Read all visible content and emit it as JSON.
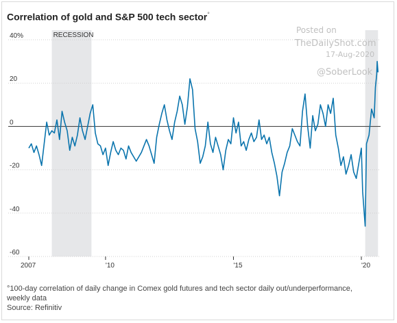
{
  "chart_data": {
    "type": "line",
    "title": "Correlation of gold and S&P 500 tech sector",
    "title_footnote_marker": "°",
    "xlabel": "",
    "ylabel": "",
    "ylim": [
      -60,
      40
    ],
    "xlim": [
      2007.0,
      2020.75
    ],
    "y_ticks": [
      {
        "value": 40,
        "label": "40%"
      },
      {
        "value": 20,
        "label": "20"
      },
      {
        "value": 0,
        "label": "0"
      },
      {
        "value": -20,
        "label": "-20"
      },
      {
        "value": -40,
        "label": "-40"
      },
      {
        "value": -60,
        "label": "-60"
      }
    ],
    "x_ticks": [
      {
        "value": 2007,
        "label": "2007"
      },
      {
        "value": 2010,
        "label": "'10"
      },
      {
        "value": 2015,
        "label": "'15"
      },
      {
        "value": 2020,
        "label": "'20"
      }
    ],
    "shaded_regions": [
      {
        "label": "RECESSION",
        "x0": 2007.9,
        "x1": 2009.45
      },
      {
        "label": "",
        "x0": 2020.15,
        "x1": 2020.65
      }
    ],
    "reference_line": 0,
    "colors": {
      "line": "#0a74ad",
      "recession": "#e6e7e9",
      "zero": "#333333"
    },
    "series": [
      {
        "name": "",
        "points": [
          [
            2007.0,
            -10
          ],
          [
            2007.1,
            -8
          ],
          [
            2007.2,
            -12
          ],
          [
            2007.3,
            -9
          ],
          [
            2007.4,
            -13
          ],
          [
            2007.5,
            -18
          ],
          [
            2007.6,
            -8
          ],
          [
            2007.7,
            2
          ],
          [
            2007.8,
            -4
          ],
          [
            2007.9,
            -2
          ],
          [
            2008.0,
            -3
          ],
          [
            2008.1,
            3
          ],
          [
            2008.2,
            -6
          ],
          [
            2008.3,
            7
          ],
          [
            2008.4,
            2
          ],
          [
            2008.5,
            -2
          ],
          [
            2008.6,
            -11
          ],
          [
            2008.7,
            -5
          ],
          [
            2008.8,
            -9
          ],
          [
            2008.9,
            -4
          ],
          [
            2009.0,
            4
          ],
          [
            2009.1,
            -2
          ],
          [
            2009.2,
            -6
          ],
          [
            2009.3,
            0
          ],
          [
            2009.4,
            6
          ],
          [
            2009.5,
            10
          ],
          [
            2009.6,
            -3
          ],
          [
            2009.7,
            -8
          ],
          [
            2009.8,
            -9
          ],
          [
            2009.9,
            -13
          ],
          [
            2010.0,
            -10
          ],
          [
            2010.1,
            -18
          ],
          [
            2010.2,
            -12
          ],
          [
            2010.3,
            -7
          ],
          [
            2010.4,
            -11
          ],
          [
            2010.5,
            -13
          ],
          [
            2010.6,
            -10
          ],
          [
            2010.7,
            -11
          ],
          [
            2010.8,
            -15
          ],
          [
            2010.9,
            -9
          ],
          [
            2011.0,
            -12
          ],
          [
            2011.2,
            -16
          ],
          [
            2011.4,
            -12
          ],
          [
            2011.6,
            -6
          ],
          [
            2011.7,
            -9
          ],
          [
            2011.8,
            -13
          ],
          [
            2011.9,
            -17
          ],
          [
            2012.0,
            -5
          ],
          [
            2012.1,
            1
          ],
          [
            2012.2,
            6
          ],
          [
            2012.3,
            10
          ],
          [
            2012.4,
            3
          ],
          [
            2012.5,
            -2
          ],
          [
            2012.6,
            -6
          ],
          [
            2012.7,
            2
          ],
          [
            2012.8,
            7
          ],
          [
            2012.9,
            14
          ],
          [
            2013.0,
            10
          ],
          [
            2013.1,
            1
          ],
          [
            2013.2,
            9
          ],
          [
            2013.3,
            22
          ],
          [
            2013.4,
            17
          ],
          [
            2013.5,
            -1
          ],
          [
            2013.6,
            -7
          ],
          [
            2013.7,
            -17
          ],
          [
            2013.8,
            -14
          ],
          [
            2013.9,
            -9
          ],
          [
            2014.0,
            2
          ],
          [
            2014.1,
            -8
          ],
          [
            2014.2,
            -12
          ],
          [
            2014.3,
            -5
          ],
          [
            2014.4,
            -9
          ],
          [
            2014.5,
            -13
          ],
          [
            2014.6,
            -20
          ],
          [
            2014.7,
            -11
          ],
          [
            2014.8,
            -6
          ],
          [
            2014.9,
            -8
          ],
          [
            2015.0,
            4
          ],
          [
            2015.1,
            -3
          ],
          [
            2015.2,
            2
          ],
          [
            2015.3,
            -9
          ],
          [
            2015.4,
            -7
          ],
          [
            2015.5,
            -11
          ],
          [
            2015.6,
            -6
          ],
          [
            2015.7,
            -3
          ],
          [
            2015.8,
            -7
          ],
          [
            2015.9,
            -5
          ],
          [
            2016.0,
            3
          ],
          [
            2016.1,
            -6
          ],
          [
            2016.2,
            -4
          ],
          [
            2016.3,
            -8
          ],
          [
            2016.4,
            -5
          ],
          [
            2016.5,
            -12
          ],
          [
            2016.6,
            -17
          ],
          [
            2016.7,
            -23
          ],
          [
            2016.8,
            -32
          ],
          [
            2016.9,
            -21
          ],
          [
            2017.0,
            -17
          ],
          [
            2017.1,
            -12
          ],
          [
            2017.2,
            -9
          ],
          [
            2017.3,
            -1
          ],
          [
            2017.4,
            -4
          ],
          [
            2017.5,
            -7
          ],
          [
            2017.6,
            -9
          ],
          [
            2017.7,
            7
          ],
          [
            2017.8,
            15
          ],
          [
            2017.9,
            0
          ],
          [
            2018.0,
            -10
          ],
          [
            2018.1,
            5
          ],
          [
            2018.2,
            -2
          ],
          [
            2018.3,
            1
          ],
          [
            2018.4,
            10
          ],
          [
            2018.5,
            6
          ],
          [
            2018.6,
            0
          ],
          [
            2018.7,
            10
          ],
          [
            2018.8,
            6
          ],
          [
            2018.9,
            13
          ],
          [
            2019.0,
            -4
          ],
          [
            2019.1,
            -10
          ],
          [
            2019.2,
            -18
          ],
          [
            2019.3,
            -14
          ],
          [
            2019.4,
            -22
          ],
          [
            2019.5,
            -18
          ],
          [
            2019.6,
            -13
          ],
          [
            2019.7,
            -21
          ],
          [
            2019.8,
            -24
          ],
          [
            2019.9,
            -17
          ],
          [
            2020.0,
            -10
          ],
          [
            2020.05,
            -30
          ],
          [
            2020.1,
            -38
          ],
          [
            2020.15,
            -46
          ],
          [
            2020.2,
            -8
          ],
          [
            2020.3,
            -4
          ],
          [
            2020.4,
            8
          ],
          [
            2020.5,
            4
          ],
          [
            2020.55,
            18
          ],
          [
            2020.6,
            24
          ],
          [
            2020.62,
            30
          ],
          [
            2020.65,
            25
          ]
        ]
      }
    ]
  },
  "watermark": {
    "line1": "Posted on",
    "line2": "TheDailyShot.com",
    "date": "17-Aug-2020",
    "handle": "@SoberLook"
  },
  "footnote": {
    "note": "°100-day correlation of daily change in Comex gold futures and tech sector daily out/underperformance, weekly data",
    "source": "Source: Refinitiv"
  }
}
